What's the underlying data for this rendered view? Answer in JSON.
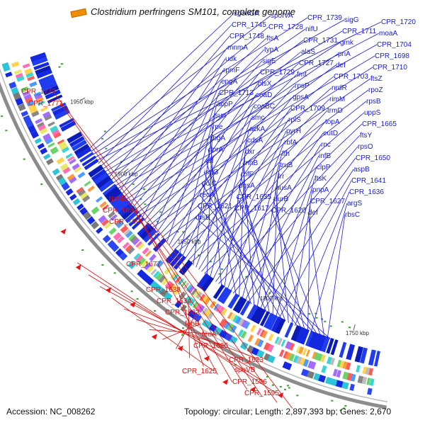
{
  "title": "Clostridium perfringens SM101, complete genome",
  "footer": {
    "accession": "Accession: NC_008262",
    "summary": "Topology: circular; Length: 2,897,393 bp; Genes: 2,670"
  },
  "colors": {
    "blue_label": "#1a1adb",
    "red_label": "#dd1111",
    "backbone": "#8c8c8c",
    "legend_swatch": "#f28c00"
  },
  "scale_ticks": [
    "1950 kbp",
    "1900 kbp",
    "1850 kbp",
    "1800 kbp",
    "1750 kbp"
  ],
  "blue_labels": [
    "spoIIGA",
    "spoIVA",
    "CPR_1739",
    "sigG",
    "CPR_1720",
    "CPR_1745",
    "CPR_1728",
    "nifU",
    "CPR_1711",
    "moaA",
    "CPR_1748",
    "ftsA",
    "CPR_1731",
    "gmk",
    "CPR_1704",
    "mnmA",
    "typA",
    "alaS",
    "priA",
    "CPR_1698",
    "udk",
    "sigE",
    "CPR_1727",
    "def",
    "CPR_1710",
    "rpmF",
    "CPR_1729",
    "fmt",
    "CPR_1703",
    "ftsZ",
    "engA",
    "plsX",
    "rpsP",
    "nrdR",
    "rpoZ",
    "CPR_1713",
    "coaD",
    "gpsA",
    "rimM",
    "rpsB",
    "acpP",
    "coaBC",
    "CPR_1709",
    "trmD",
    "uppS",
    "sun",
    "smc",
    "rplS",
    "topA",
    "CPR_1665",
    "rpe",
    "ackA",
    "pyrH",
    "eutD",
    "ftsY",
    "rbgA",
    "cdsA",
    "rbfA",
    "rnc",
    "rpsO",
    "dprA",
    "dxr",
    "ffh",
    "infB",
    "CPR_1650",
    "tsf",
    "rnhB",
    "truB",
    "clpP",
    "aspB",
    "ispG",
    "rbfF",
    "frr",
    "ftsK",
    "CPR_1641",
    "polC",
    "pgsA",
    "nusA",
    "pnpA",
    "CPR_1636",
    "recA",
    "CPR_1635",
    "purB",
    "CPR_1627",
    "argS",
    "CPR_1621",
    "CPR_1617",
    "CPR_1620",
    "def",
    "rbsC",
    "rbsB"
  ],
  "red_labels": [
    "CPR_1772",
    "CPR_1771",
    "rpmB",
    "CPR_1699",
    "CPR_1697",
    "CPR_1677",
    "CPR_1638",
    "CPR_1634",
    "CPR_1632",
    "feoB",
    "feoA",
    "CPR_1626",
    "CPR_1623",
    "CPR_1625",
    "spoVB",
    "CPR_1596",
    "CPR_1595"
  ]
}
